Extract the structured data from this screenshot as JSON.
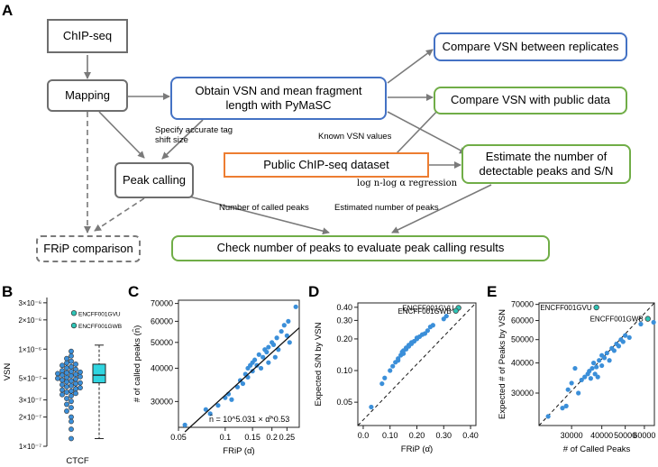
{
  "panel_labels": {
    "a": "A",
    "b": "B",
    "c": "C",
    "d": "D",
    "e": "E"
  },
  "flowchart": {
    "chipseq": "ChIP-seq",
    "mapping": "Mapping",
    "obtain_vsn": "Obtain VSN and mean fragment length with PyMaSC",
    "compare_replicates": "Compare VSN between replicates",
    "compare_public": "Compare VSN with public data",
    "public_dataset": "Public ChIP-seq dataset",
    "estimate_peaks": "Estimate the number of detectable peaks and S/N",
    "peak_calling": "Peak calling",
    "frip_comparison": "FRiP comparison",
    "check_peaks": "Check number of peaks to evaluate peak calling results",
    "edge_shift": "Specify accurate tag shift size",
    "edge_known_vsn": "Known VSN values",
    "edge_regression": "log n-log α regression",
    "edge_called": "Number of called peaks",
    "edge_estimated": "Estimated number of peaks"
  },
  "colors": {
    "blue_box": "#4472c4",
    "green_box": "#70ad47",
    "orange_box": "#ed7d31",
    "gray": "#6e6e6e",
    "point": "#3b8fd9",
    "highlight": "#2ec4b6",
    "box_fill": "#30d5e0"
  },
  "chart_data": [
    {
      "panel": "B",
      "type": "scatter",
      "ylabel": "VSN",
      "xlabel": "CTCF",
      "y_ticks": [
        "3×10⁻⁶",
        "2×10⁻⁶",
        "1×10⁻⁶",
        "5×10⁻⁷",
        "3×10⁻⁷",
        "2×10⁻⁷",
        "1×10⁻⁷"
      ],
      "y_tick_values": [
        3e-06,
        2e-06,
        1e-06,
        5e-07,
        3e-07,
        2e-07,
        1e-07
      ],
      "ylim": [
        1e-07,
        3.4e-06
      ],
      "points": [
        2.35e-06,
        1.75e-06,
        9.5e-07,
        8.5e-07,
        8e-07,
        7.5e-07,
        7.2e-07,
        7e-07,
        6.8e-07,
        6.6e-07,
        6.4e-07,
        6.2e-07,
        6e-07,
        5.9e-07,
        5.8e-07,
        5.7e-07,
        5.6e-07,
        5.5e-07,
        5.4e-07,
        5.3e-07,
        5.2e-07,
        5.1e-07,
        5e-07,
        4.9e-07,
        4.8e-07,
        4.7e-07,
        4.6e-07,
        4.5e-07,
        4.4e-07,
        4.3e-07,
        4.2e-07,
        4.1e-07,
        4e-07,
        3.9e-07,
        3.8e-07,
        3.7e-07,
        3.6e-07,
        3.5e-07,
        3.4e-07,
        3.3e-07,
        3.1e-07,
        2.9e-07,
        2.7e-07,
        2.5e-07,
        2.3e-07,
        2e-07,
        1.8e-07,
        1.5e-07,
        1.2e-07
      ],
      "highlighted": [
        {
          "label": "ENCFF001GVU",
          "value": 2.35e-06
        },
        {
          "label": "ENCFF001GWB",
          "value": 1.75e-06
        }
      ],
      "box": {
        "q1": 4.5e-07,
        "median": 5.4e-07,
        "q3": 7e-07,
        "whisker_low": 1.2e-07,
        "whisker_high": 1.1e-06
      }
    },
    {
      "panel": "C",
      "type": "scatter",
      "xlabel": "FRiP (α̂)",
      "ylabel": "# of called peaks (n̂)",
      "x_ticks": [
        "0.05",
        "0.1",
        "0.15",
        "0.2",
        "0.25"
      ],
      "x_tick_values": [
        0.05,
        0.1,
        0.15,
        0.2,
        0.25
      ],
      "y_ticks": [
        "30000",
        "40000",
        "50000",
        "60000",
        "70000"
      ],
      "y_tick_values": [
        30000,
        40000,
        50000,
        60000,
        70000
      ],
      "xlim": [
        0.05,
        0.3
      ],
      "ylim": [
        24000,
        72000
      ],
      "fit": {
        "intercept_log10": 5.031,
        "slope": 0.53,
        "label": "n̂ = 10^5.031 × α̂^0.53"
      },
      "points": [
        [
          0.055,
          24500
        ],
        [
          0.075,
          28000
        ],
        [
          0.08,
          27000
        ],
        [
          0.09,
          29000
        ],
        [
          0.1,
          31000
        ],
        [
          0.105,
          32000
        ],
        [
          0.11,
          30500
        ],
        [
          0.12,
          34000
        ],
        [
          0.125,
          36000
        ],
        [
          0.13,
          35000
        ],
        [
          0.135,
          38000
        ],
        [
          0.14,
          37000
        ],
        [
          0.14,
          40000
        ],
        [
          0.145,
          41000
        ],
        [
          0.15,
          42000
        ],
        [
          0.15,
          39000
        ],
        [
          0.155,
          43000
        ],
        [
          0.16,
          41000
        ],
        [
          0.165,
          45000
        ],
        [
          0.17,
          40000
        ],
        [
          0.175,
          44000
        ],
        [
          0.18,
          47000
        ],
        [
          0.185,
          46000
        ],
        [
          0.19,
          42000
        ],
        [
          0.19,
          48000
        ],
        [
          0.2,
          50000
        ],
        [
          0.205,
          49000
        ],
        [
          0.21,
          44000
        ],
        [
          0.215,
          52000
        ],
        [
          0.22,
          47000
        ],
        [
          0.23,
          55000
        ],
        [
          0.24,
          58000
        ],
        [
          0.25,
          53000
        ],
        [
          0.255,
          60000
        ],
        [
          0.26,
          50000
        ],
        [
          0.285,
          68000
        ]
      ]
    },
    {
      "panel": "D",
      "type": "scatter",
      "xlabel": "FRiP (α̂)",
      "ylabel": "Expected S/N by VSN",
      "x_ticks": [
        "0.0",
        "0.10",
        "0.20",
        "0.30",
        "0.40"
      ],
      "x_tick_values": [
        0.0,
        0.1,
        0.2,
        0.3,
        0.4
      ],
      "y_ticks": [
        "0.40",
        "0.30",
        "0.20",
        "0.10",
        "0.05"
      ],
      "y_tick_values": [
        0.4,
        0.3,
        0.2,
        0.1,
        0.05
      ],
      "xlim": [
        -0.02,
        0.42
      ],
      "ylim": [
        0.03,
        0.44
      ],
      "points": [
        [
          0.03,
          0.045
        ],
        [
          0.07,
          0.075
        ],
        [
          0.08,
          0.085
        ],
        [
          0.1,
          0.1
        ],
        [
          0.11,
          0.11
        ],
        [
          0.12,
          0.12
        ],
        [
          0.13,
          0.125
        ],
        [
          0.13,
          0.13
        ],
        [
          0.14,
          0.14
        ],
        [
          0.145,
          0.15
        ],
        [
          0.15,
          0.145
        ],
        [
          0.15,
          0.155
        ],
        [
          0.16,
          0.16
        ],
        [
          0.16,
          0.165
        ],
        [
          0.17,
          0.17
        ],
        [
          0.17,
          0.175
        ],
        [
          0.18,
          0.18
        ],
        [
          0.18,
          0.185
        ],
        [
          0.19,
          0.19
        ],
        [
          0.2,
          0.2
        ],
        [
          0.2,
          0.205
        ],
        [
          0.21,
          0.21
        ],
        [
          0.22,
          0.22
        ],
        [
          0.23,
          0.225
        ],
        [
          0.24,
          0.24
        ],
        [
          0.25,
          0.26
        ],
        [
          0.26,
          0.27
        ],
        [
          0.3,
          0.31
        ],
        [
          0.31,
          0.33
        ]
      ],
      "highlighted": [
        {
          "label": "ENCFF001GVU",
          "x": 0.355,
          "y": 0.395
        },
        {
          "label": "ENCFF001GWB",
          "x": 0.345,
          "y": 0.37
        }
      ]
    },
    {
      "panel": "E",
      "type": "scatter",
      "xlabel": "# of Called Peaks",
      "ylabel": "Expected # of Peaks by VSN",
      "x_ticks": [
        "30000",
        "40000",
        "50000",
        "60000"
      ],
      "x_tick_values": [
        30000,
        40000,
        50000,
        60000
      ],
      "y_ticks": [
        "70000",
        "60000",
        "50000",
        "40000",
        "30000"
      ],
      "y_tick_values": [
        70000,
        60000,
        50000,
        40000,
        30000
      ],
      "xlim": [
        22000,
        66000
      ],
      "ylim": [
        22000,
        71000
      ],
      "points": [
        [
          24000,
          24000
        ],
        [
          27500,
          26000
        ],
        [
          28500,
          26500
        ],
        [
          29000,
          31000
        ],
        [
          30000,
          33000
        ],
        [
          31000,
          38000
        ],
        [
          32000,
          30000
        ],
        [
          33000,
          34000
        ],
        [
          34000,
          35000
        ],
        [
          35000,
          36000
        ],
        [
          35500,
          37000
        ],
        [
          36000,
          34500
        ],
        [
          36500,
          38000
        ],
        [
          37000,
          40000
        ],
        [
          37500,
          36000
        ],
        [
          38000,
          38500
        ],
        [
          38500,
          35000
        ],
        [
          39000,
          41000
        ],
        [
          40000,
          39000
        ],
        [
          40000,
          43000
        ],
        [
          41000,
          42000
        ],
        [
          42000,
          44000
        ],
        [
          43000,
          41000
        ],
        [
          44000,
          46000
        ],
        [
          45000,
          45000
        ],
        [
          46000,
          48000
        ],
        [
          47000,
          47000
        ],
        [
          48000,
          50000
        ],
        [
          49000,
          49000
        ],
        [
          50000,
          52000
        ],
        [
          52000,
          51000
        ],
        [
          58000,
          58000
        ],
        [
          65500,
          59000
        ]
      ],
      "highlighted": [
        {
          "label": "ENCFF001GVU",
          "x": 38000,
          "y": 68000
        },
        {
          "label": "ENCFF001GWB",
          "x": 62000,
          "y": 61000
        }
      ]
    }
  ]
}
